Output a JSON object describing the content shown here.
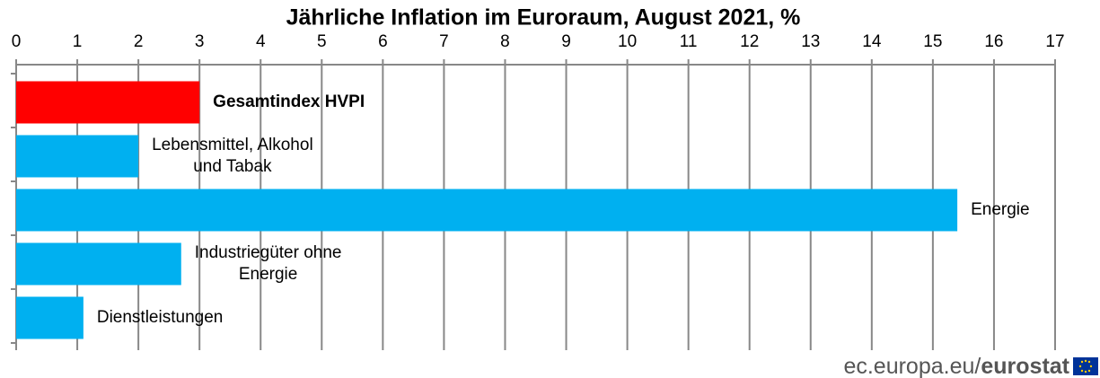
{
  "chart_data": {
    "type": "barh",
    "title": "Jährliche Inflation im Euroraum, August 2021, %",
    "categories": [
      "Gesamtindex HVPI",
      "Lebensmittel, Alkohol\nund Tabak",
      "Energie",
      "Industriegüter ohne\nEnergie",
      "Dienstleistungen"
    ],
    "values": [
      3.0,
      2.0,
      15.4,
      2.7,
      1.1
    ],
    "colors": [
      "#ff0000",
      "#00b0f0",
      "#00b0f0",
      "#00b0f0",
      "#00b0f0"
    ],
    "xlim": [
      0,
      17
    ],
    "xticks": [
      0,
      1,
      2,
      3,
      4,
      5,
      6,
      7,
      8,
      9,
      10,
      11,
      12,
      13,
      14,
      15,
      16,
      17
    ],
    "grid": true
  },
  "footer": {
    "source": "ec.europa.eu/",
    "brand": "eurostat"
  }
}
